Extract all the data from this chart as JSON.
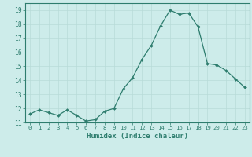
{
  "x": [
    0,
    1,
    2,
    3,
    4,
    5,
    6,
    7,
    8,
    9,
    10,
    11,
    12,
    13,
    14,
    15,
    16,
    17,
    18,
    19,
    20,
    21,
    22,
    23
  ],
  "y": [
    11.6,
    11.9,
    11.7,
    11.5,
    11.9,
    11.5,
    11.1,
    11.2,
    11.8,
    12.0,
    13.4,
    14.2,
    15.5,
    16.5,
    17.9,
    19.0,
    18.7,
    18.8,
    17.8,
    15.2,
    15.1,
    14.7,
    14.1,
    13.5
  ],
  "xlabel": "Humidex (Indice chaleur)",
  "line_color": "#2e7d6e",
  "bg_color": "#cdecea",
  "grid_color": "#b8dbd8",
  "tick_color": "#2e7d6e",
  "spine_color": "#2e7d6e",
  "ylim": [
    11,
    19.5
  ],
  "xlim": [
    -0.5,
    23.5
  ],
  "yticks": [
    11,
    12,
    13,
    14,
    15,
    16,
    17,
    18,
    19
  ],
  "xticks": [
    0,
    1,
    2,
    3,
    4,
    5,
    6,
    7,
    8,
    9,
    10,
    11,
    12,
    13,
    14,
    15,
    16,
    17,
    18,
    19,
    20,
    21,
    22,
    23
  ]
}
